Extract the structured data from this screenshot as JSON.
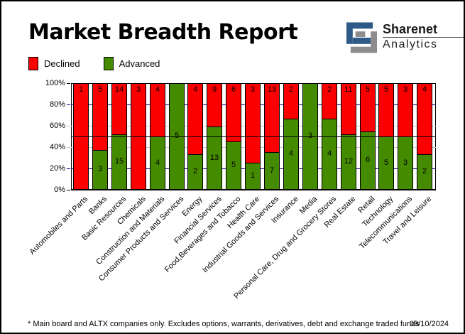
{
  "header": {
    "title": "Market Breadth Report",
    "logo": {
      "line1": "Sharenet",
      "line2": "Analytics"
    }
  },
  "legend": {
    "declined_label": "Declined",
    "advanced_label": "Advanced"
  },
  "chart_data": {
    "type": "bar",
    "stacked": true,
    "normalized": "percent",
    "title": "Market Breadth Report",
    "xlabel": "",
    "ylabel": "",
    "ylim": [
      0,
      100
    ],
    "y_ticks": [
      "0%",
      "20%",
      "40%",
      "60%",
      "80%",
      "100%"
    ],
    "grid": {
      "navy_lines_pct": [
        20,
        80
      ],
      "gray_lines_pct": [
        40,
        60
      ],
      "black_midline_pct": 50
    },
    "legend_position": "top-left",
    "categories": [
      "Automobiles and Parts",
      "Banks",
      "Basic Resources",
      "Chemicals",
      "Construction and Materials",
      "Consumer Products and Services",
      "Energy",
      "Financial Services",
      "Food,Beverages and Tobacco",
      "Health Care",
      "Industrial Goods and Services",
      "Insurance",
      "Media",
      "Personal Care, Drug and Grocery Stores",
      "Real Estate",
      "Retail",
      "Technology",
      "Telecommunications",
      "Travel and Leisure"
    ],
    "series": [
      {
        "name": "Declined",
        "values": [
          1,
          5,
          14,
          3,
          4,
          0,
          4,
          9,
          6,
          3,
          13,
          2,
          0,
          2,
          11,
          5,
          5,
          3,
          4
        ]
      },
      {
        "name": "Advanced",
        "values": [
          0,
          3,
          15,
          0,
          4,
          5,
          2,
          13,
          5,
          1,
          7,
          4,
          3,
          4,
          12,
          6,
          5,
          3,
          2
        ]
      }
    ]
  },
  "colors": {
    "declined": "#fb0000",
    "advanced": "#458b00",
    "grid_navy": "#000080",
    "grid_gray": "#c8c8c8",
    "axis_black": "#000000",
    "logo_blue": "#2d5a87",
    "logo_gray": "#8c8c8c"
  },
  "footer": {
    "note": "* Main board and ALTX companies only. Excludes options, warrants, derivatives, debt and exchange traded funds",
    "date": "09/10/2024"
  }
}
